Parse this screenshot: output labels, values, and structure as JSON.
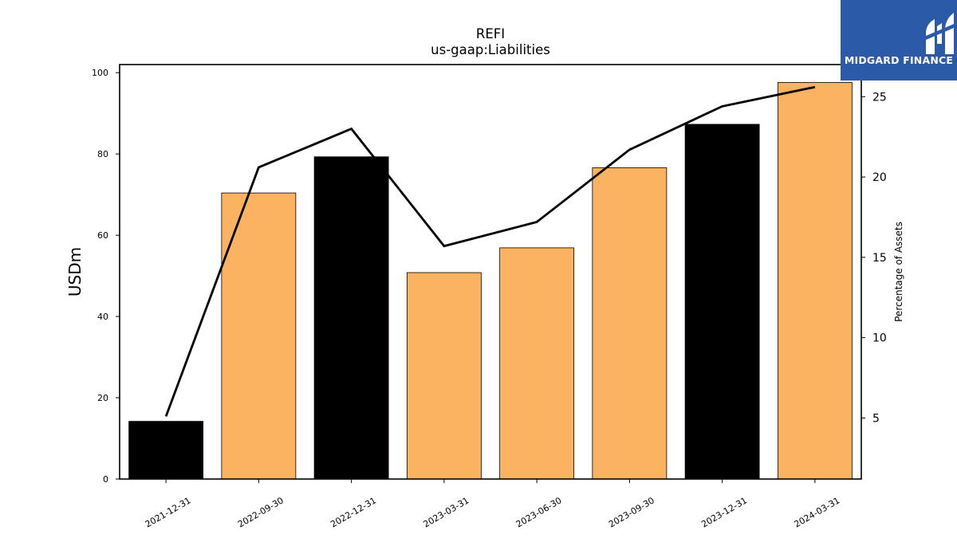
{
  "logo": {
    "text": "MIDGARD FINANCE",
    "background": "#2b5aa8"
  },
  "chart_data": {
    "type": "bar",
    "title": "REFI",
    "subtitle": "us-gaap:Liabilities",
    "ylabel": "USDm",
    "y2label": "Percentage of Assets",
    "categories": [
      "2021-12-31",
      "2022-09-30",
      "2022-12-31",
      "2023-03-31",
      "2023-06-30",
      "2023-09-30",
      "2023-12-31",
      "2024-03-31"
    ],
    "series": [
      {
        "type": "bar",
        "axis": "left",
        "values": [
          14.2,
          70.4,
          79.3,
          50.8,
          56.9,
          76.6,
          87.3,
          97.6
        ],
        "colors": [
          "#000000",
          "#fbb362",
          "#000000",
          "#fbb362",
          "#fbb362",
          "#fbb362",
          "#000000",
          "#fbb362"
        ]
      },
      {
        "type": "line",
        "axis": "right",
        "color": "#000000",
        "values": [
          5.1,
          20.6,
          23.0,
          15.7,
          17.2,
          21.7,
          24.4,
          25.6
        ]
      }
    ],
    "ylim": [
      0,
      102
    ],
    "yticks": [
      0,
      20,
      40,
      60,
      80,
      100
    ],
    "y2lim": [
      1.2,
      27.0
    ],
    "y2ticks": [
      5,
      10,
      15,
      20,
      25
    ],
    "grid": false
  }
}
